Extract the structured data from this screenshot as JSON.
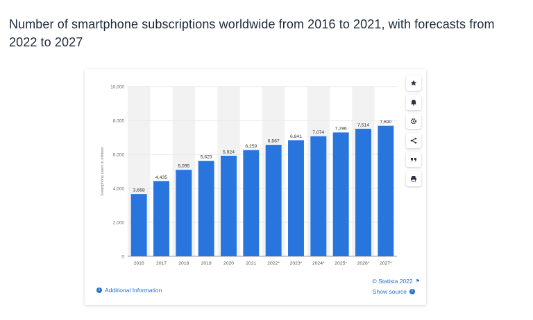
{
  "page": {
    "title": "Number of smartphone subscriptions worldwide from 2016 to 2021, with forecasts from 2022 to 2027"
  },
  "tools": [
    {
      "name": "favorite-button",
      "icon": "star-icon"
    },
    {
      "name": "notification-button",
      "icon": "bell-icon"
    },
    {
      "name": "settings-button",
      "icon": "gear-icon"
    },
    {
      "name": "share-button",
      "icon": "share-icon"
    },
    {
      "name": "cite-button",
      "icon": "quote-icon"
    },
    {
      "name": "print-button",
      "icon": "printer-icon"
    }
  ],
  "footer": {
    "additional_info": "Additional Information",
    "copyright": "© Statista 2022",
    "show_source": "Show source",
    "info_glyph": "i"
  },
  "colors": {
    "bar": "#2876dd",
    "band": "#f2f2f2",
    "grid": "#e6e6e6",
    "accent": "#2273c9"
  },
  "chart_data": {
    "type": "bar",
    "title": "Number of smartphone subscriptions worldwide from 2016 to 2021, with forecasts from 2022 to 2027",
    "xlabel": "",
    "ylabel": "Smartphone users in millions",
    "ylim": [
      0,
      10000
    ],
    "yticks": [
      0,
      2000,
      4000,
      6000,
      8000,
      10000
    ],
    "ytick_labels": [
      "0",
      "2,000",
      "4,000",
      "6,000",
      "8,000",
      "10,000"
    ],
    "categories": [
      "2016",
      "2017",
      "2018",
      "2019",
      "2020",
      "2021",
      "2022*",
      "2023*",
      "2024*",
      "2025*",
      "2026*",
      "2027*"
    ],
    "values": [
      3668,
      4435,
      5095,
      5623,
      5924,
      6259,
      6567,
      6841,
      7074,
      7296,
      7514,
      7690
    ],
    "value_labels": [
      "3,668",
      "4,435",
      "5,095",
      "5,623",
      "5,924",
      "6,259",
      "6,567",
      "6,841",
      "7,074",
      "7,296",
      "7,514",
      "7,690"
    ],
    "grid": true,
    "legend": "none"
  }
}
